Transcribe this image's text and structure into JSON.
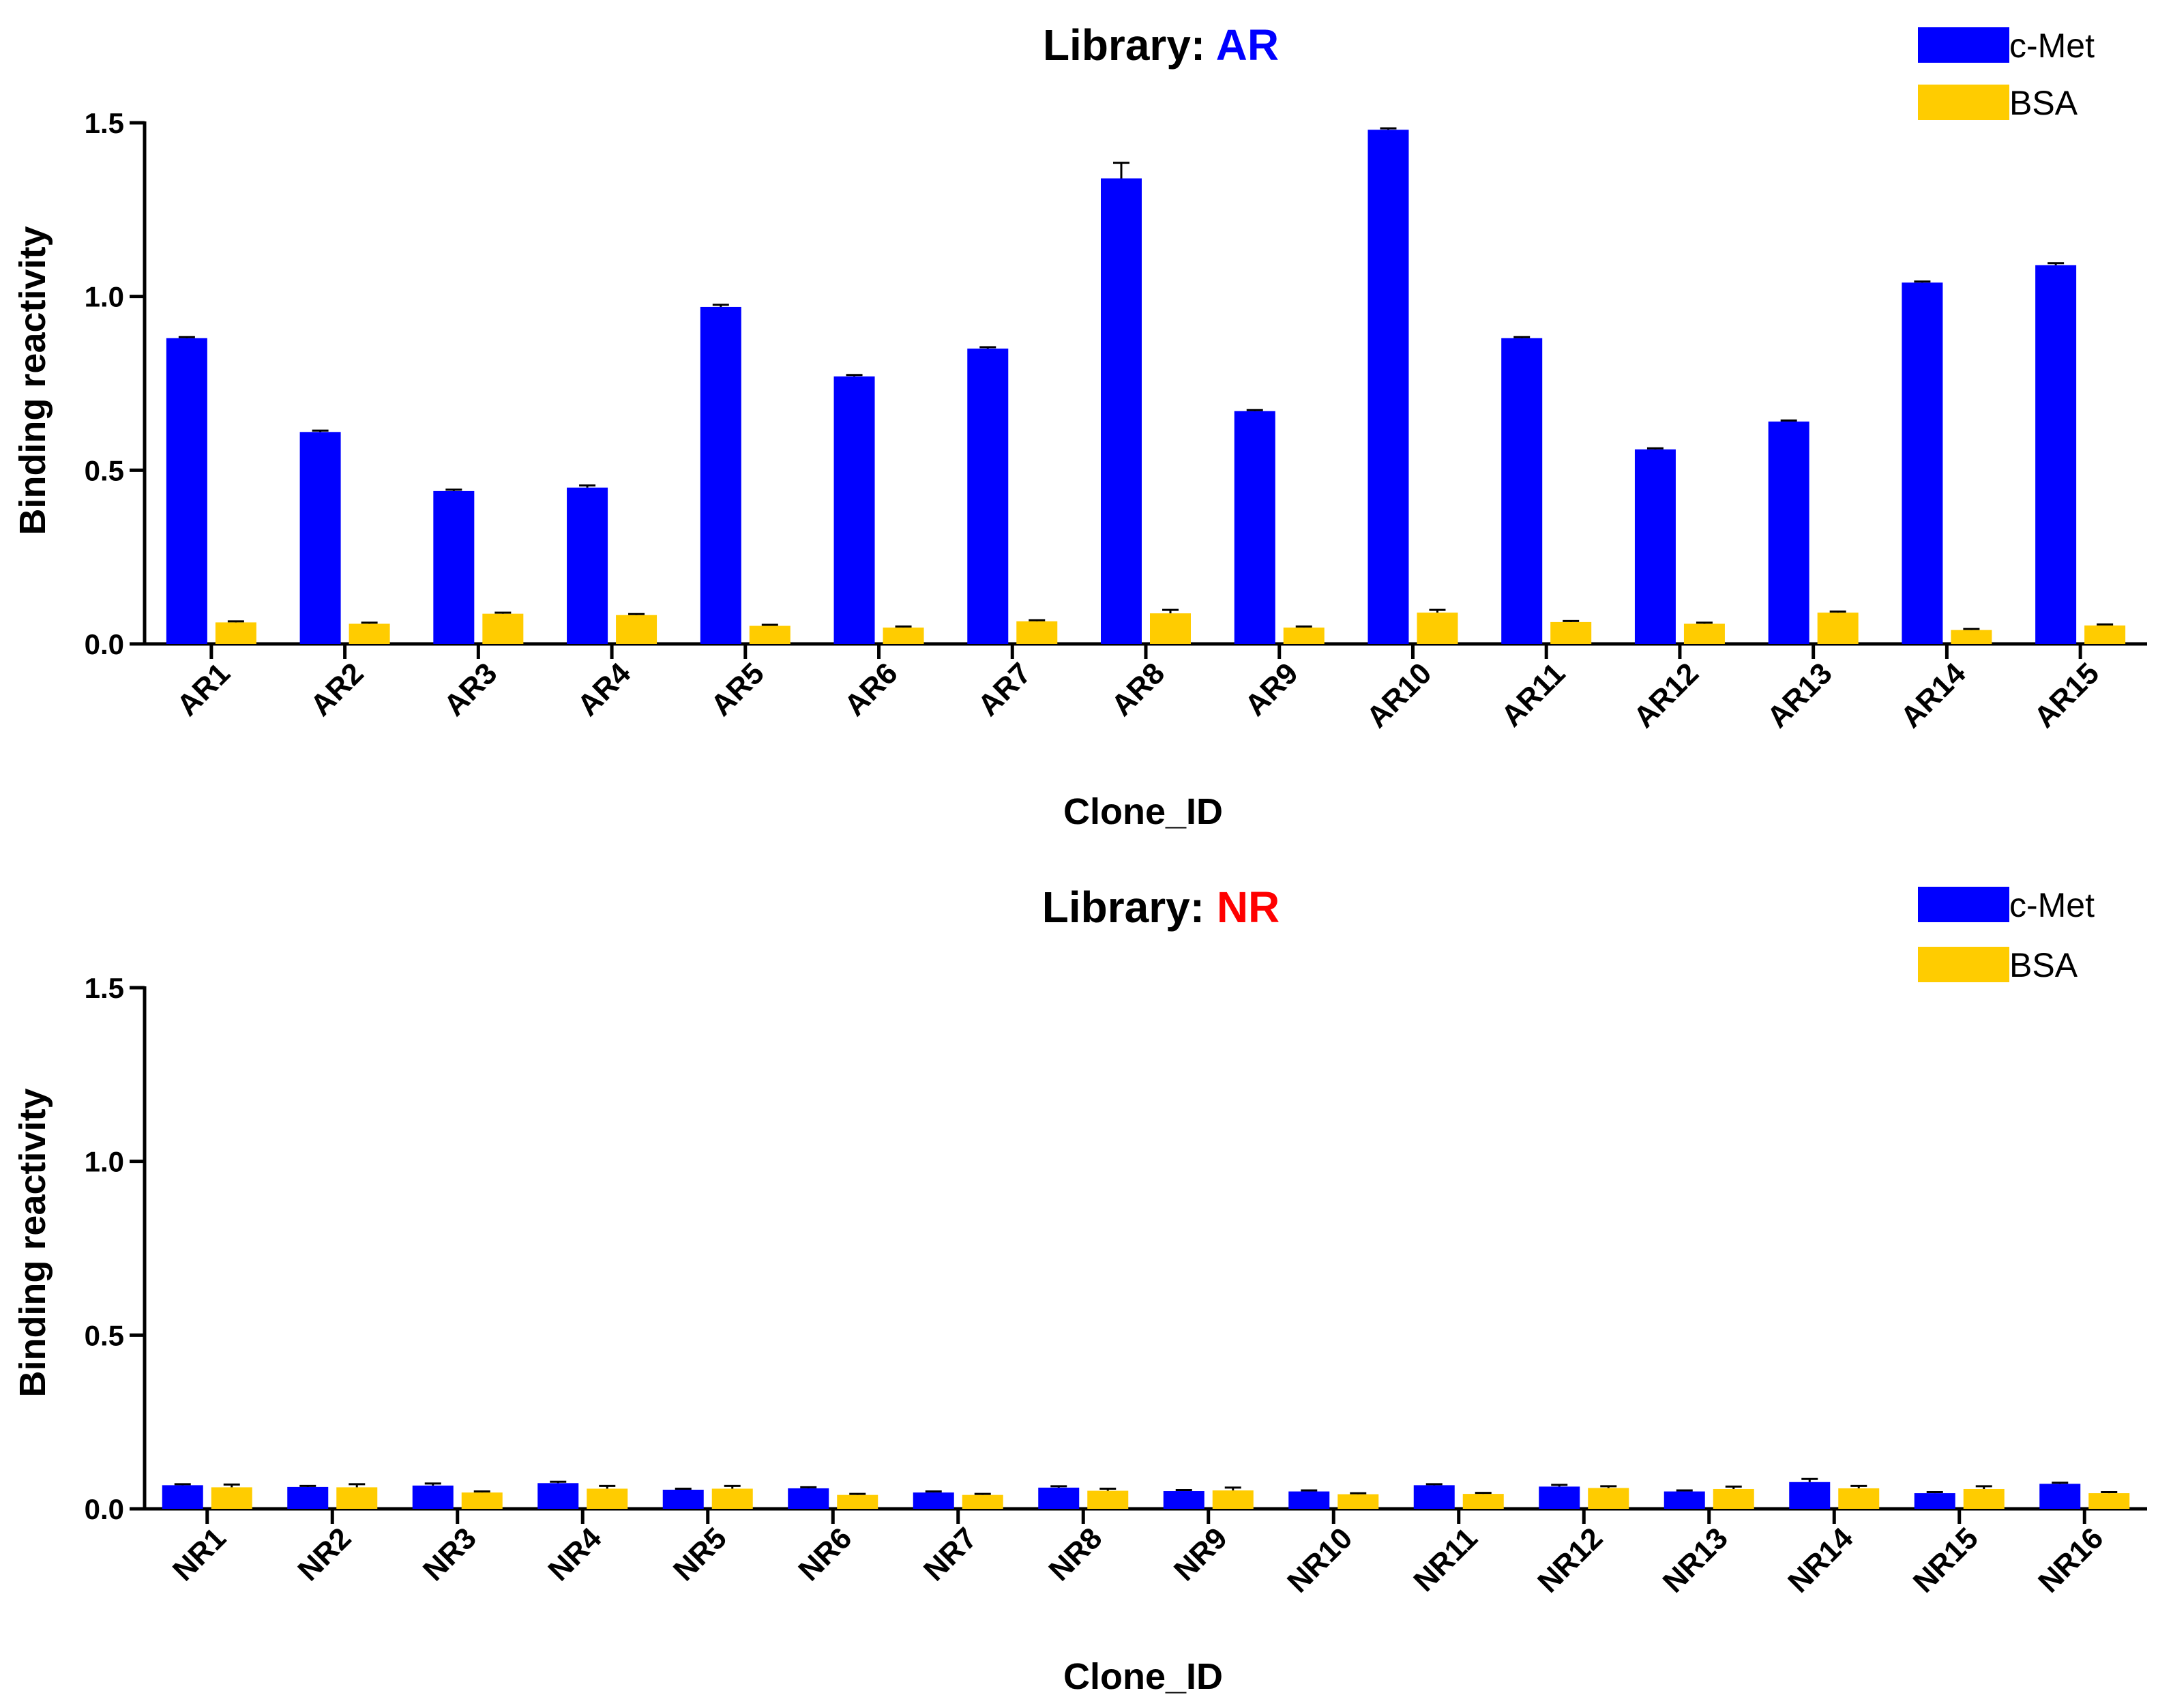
{
  "chart_data": [
    {
      "type": "bar",
      "title_prefix": "Library: ",
      "title_highlight": "AR",
      "title_highlight_color": "#0000ff",
      "xlabel": "Clone_ID",
      "ylabel": "Binding reactivity",
      "ylim": [
        0,
        1.5
      ],
      "yticks": [
        "0.0",
        "0.5",
        "1.0",
        "1.5"
      ],
      "legend_position": "top-right",
      "categories": [
        "AR1",
        "AR2",
        "AR3",
        "AR4",
        "AR5",
        "AR6",
        "AR7",
        "AR8",
        "AR9",
        "AR10",
        "AR11",
        "AR12",
        "AR13",
        "AR14",
        "AR15"
      ],
      "series": [
        {
          "name": "c-Met",
          "color": "#0000ff",
          "values": [
            0.88,
            0.61,
            0.44,
            0.45,
            0.97,
            0.77,
            0.85,
            1.34,
            0.67,
            1.48,
            0.88,
            0.56,
            0.64,
            1.04,
            1.09
          ],
          "errors": [
            0.003,
            0.004,
            0.004,
            0.006,
            0.006,
            0.004,
            0.004,
            0.045,
            0.003,
            0.004,
            0.003,
            0.003,
            0.003,
            0.003,
            0.006
          ]
        },
        {
          "name": "BSA",
          "color": "#ffcc00",
          "values": [
            0.062,
            0.058,
            0.087,
            0.083,
            0.052,
            0.047,
            0.065,
            0.088,
            0.047,
            0.09,
            0.063,
            0.058,
            0.09,
            0.04,
            0.053
          ],
          "errors": [
            0.003,
            0.003,
            0.003,
            0.003,
            0.003,
            0.003,
            0.003,
            0.01,
            0.003,
            0.008,
            0.003,
            0.003,
            0.003,
            0.003,
            0.003
          ]
        }
      ]
    },
    {
      "type": "bar",
      "title_prefix": "Library: ",
      "title_highlight": "NR",
      "title_highlight_color": "#ff0000",
      "xlabel": "Clone_ID",
      "ylabel": "Binding reactivity",
      "ylim": [
        0,
        1.5
      ],
      "yticks": [
        "0.0",
        "0.5",
        "1.0",
        "1.5"
      ],
      "legend_position": "top-right",
      "categories": [
        "NR1",
        "NR2",
        "NR3",
        "NR4",
        "NR5",
        "NR6",
        "NR7",
        "NR8",
        "NR9",
        "NR10",
        "NR11",
        "NR12",
        "NR13",
        "NR14",
        "NR15",
        "NR16"
      ],
      "series": [
        {
          "name": "c-Met",
          "color": "#0000ff",
          "values": [
            0.068,
            0.063,
            0.067,
            0.074,
            0.055,
            0.059,
            0.047,
            0.061,
            0.051,
            0.05,
            0.068,
            0.064,
            0.05,
            0.077,
            0.045,
            0.072
          ],
          "errors": [
            0.003,
            0.003,
            0.006,
            0.004,
            0.003,
            0.003,
            0.003,
            0.004,
            0.003,
            0.003,
            0.003,
            0.005,
            0.003,
            0.009,
            0.003,
            0.003
          ]
        },
        {
          "name": "BSA",
          "color": "#ffcc00",
          "values": [
            0.062,
            0.062,
            0.047,
            0.058,
            0.058,
            0.04,
            0.04,
            0.052,
            0.053,
            0.042,
            0.043,
            0.06,
            0.057,
            0.059,
            0.057,
            0.045
          ],
          "errors": [
            0.008,
            0.009,
            0.003,
            0.008,
            0.008,
            0.003,
            0.003,
            0.006,
            0.008,
            0.003,
            0.003,
            0.005,
            0.007,
            0.007,
            0.008,
            0.003
          ]
        }
      ]
    }
  ]
}
